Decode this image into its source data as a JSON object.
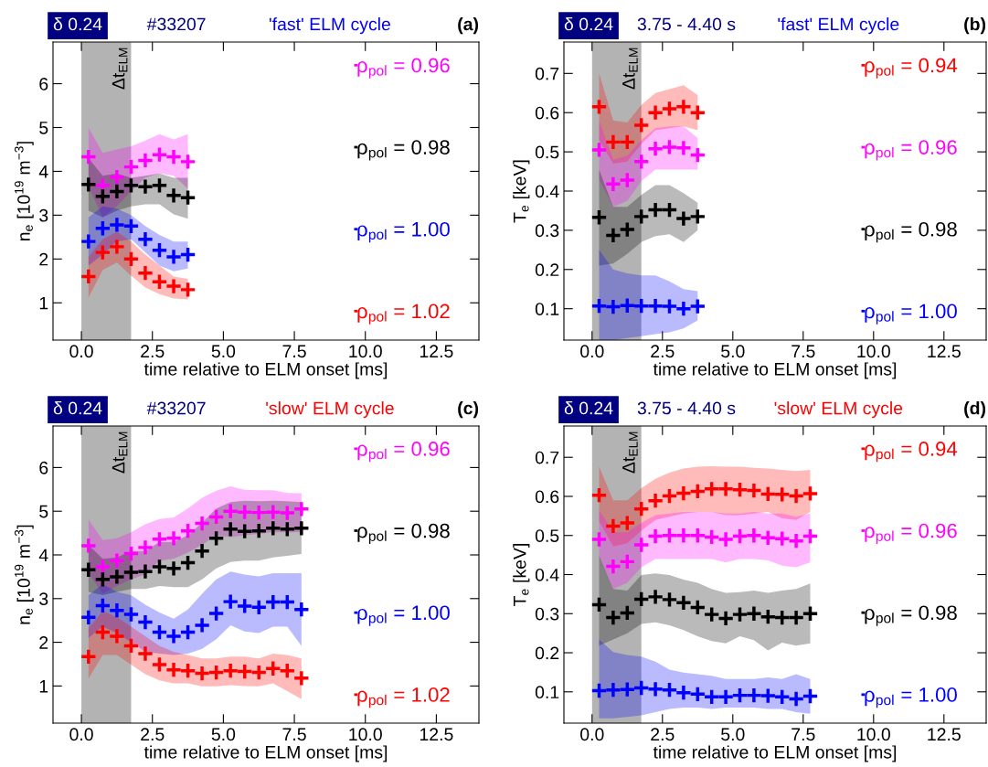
{
  "chart_data": [
    {
      "type": "scatter",
      "title": "'fast' ELM cycle",
      "subtitle": "#33207",
      "annotations": [
        "δ 0.24",
        "(a)"
      ],
      "xlabel": "time relative to ELM onset [ms]",
      "ylabel": "n$_{e}$ [10$^{19}$ m$^{−3}$]",
      "xlim": [
        -1,
        14
      ],
      "xticks": [
        {
          "value": 0,
          "label": "0.0"
        },
        {
          "value": 2.5,
          "label": "2.5"
        },
        {
          "value": 5,
          "label": "5.0"
        },
        {
          "value": 7.5,
          "label": "7.5"
        },
        {
          "value": 10,
          "label": "10.0"
        },
        {
          "value": 12.5,
          "label": "12.5"
        }
      ],
      "ylim": [
        0.15,
        6.95
      ],
      "yticks": [
        1,
        2,
        3,
        4,
        5,
        6
      ],
      "marker": "cross",
      "legend": "right",
      "bands": [
        {
          "axis": "x",
          "from": 0,
          "to": 1.75,
          "label": "Δt$_{ELM}$",
          "color": "#b3b3b3"
        }
      ],
      "x": [
        0.25,
        0.75,
        1.25,
        1.75,
        2.25,
        2.75,
        3.25,
        3.75
      ],
      "series": [
        {
          "name": "ρ$_{pol}$ = 0.96",
          "color": "#ff00ff",
          "values": [
            4.33,
            3.68,
            3.87,
            4.1,
            4.25,
            4.38,
            4.33,
            4.22
          ],
          "lower": [
            3.65,
            2.95,
            3.2,
            3.55,
            3.85,
            3.95,
            3.9,
            3.6
          ],
          "upper": [
            5.0,
            4.42,
            4.5,
            4.57,
            4.7,
            4.85,
            4.73,
            4.85
          ]
        },
        {
          "name": "ρ$_{pol}$ = 0.98",
          "color": "#000000",
          "values": [
            3.7,
            3.43,
            3.54,
            3.68,
            3.65,
            3.68,
            3.45,
            3.4
          ],
          "lower": [
            3.1,
            2.95,
            3.1,
            3.2,
            3.25,
            3.25,
            3.02,
            2.92
          ],
          "upper": [
            4.3,
            3.9,
            3.95,
            3.85,
            3.9,
            3.95,
            3.85,
            3.85
          ]
        },
        {
          "name": "ρ$_{pol}$ = 1.00",
          "color": "#0000ff",
          "values": [
            2.4,
            2.7,
            2.78,
            2.75,
            2.45,
            2.2,
            2.05,
            2.1
          ],
          "lower": [
            1.85,
            2.1,
            2.4,
            2.45,
            2.15,
            1.85,
            1.72,
            1.78
          ],
          "upper": [
            2.95,
            3.2,
            3.15,
            3.0,
            2.75,
            2.55,
            2.4,
            2.4
          ]
        },
        {
          "name": "ρ$_{pol}$ = 1.02",
          "color": "#ff0000",
          "values": [
            1.6,
            2.15,
            2.28,
            2.0,
            1.68,
            1.48,
            1.38,
            1.3
          ],
          "lower": [
            1.12,
            1.75,
            1.92,
            1.62,
            1.35,
            1.2,
            1.1,
            1.08
          ],
          "upper": [
            2.05,
            2.45,
            2.62,
            2.4,
            2.1,
            1.85,
            1.6,
            1.55
          ]
        }
      ]
    },
    {
      "type": "scatter",
      "title": "'fast' ELM cycle",
      "subtitle": "3.75 - 4.40 s",
      "annotations": [
        "δ 0.24",
        "(b)"
      ],
      "xlabel": "time relative to ELM onset [ms]",
      "ylabel": "T$_{e}$ [keV]",
      "xlim": [
        -1,
        14
      ],
      "xticks": [
        {
          "value": 0,
          "label": "0.0"
        },
        {
          "value": 2.5,
          "label": "2.5"
        },
        {
          "value": 5,
          "label": "5.0"
        },
        {
          "value": 7.5,
          "label": "7.5"
        },
        {
          "value": 10,
          "label": "10.0"
        },
        {
          "value": 12.5,
          "label": "12.5"
        }
      ],
      "ylim": [
        0.02,
        0.78
      ],
      "yticks": [
        0.1,
        0.2,
        0.3,
        0.4,
        0.5,
        0.6,
        0.7
      ],
      "marker": "cross",
      "legend": "right",
      "bands": [
        {
          "axis": "x",
          "from": 0,
          "to": 1.75,
          "label": "Δt$_{ELM}$",
          "color": "#b3b3b3"
        }
      ],
      "x": [
        0.25,
        0.75,
        1.25,
        1.75,
        2.25,
        2.75,
        3.25,
        3.75
      ],
      "series": [
        {
          "name": "ρ$_{pol}$ = 0.94",
          "color": "#ff0000",
          "values": [
            0.615,
            0.525,
            0.525,
            0.568,
            0.6,
            0.61,
            0.615,
            0.6
          ],
          "lower": [
            0.53,
            0.47,
            0.475,
            0.52,
            0.555,
            0.56,
            0.565,
            0.555
          ],
          "upper": [
            0.7,
            0.58,
            0.575,
            0.62,
            0.65,
            0.66,
            0.67,
            0.645
          ]
        },
        {
          "name": "ρ$_{pol}$ = 0.96",
          "color": "#ff00ff",
          "values": [
            0.505,
            0.418,
            0.428,
            0.475,
            0.508,
            0.512,
            0.51,
            0.492
          ],
          "lower": [
            0.43,
            0.36,
            0.375,
            0.425,
            0.455,
            0.455,
            0.455,
            0.455
          ],
          "upper": [
            0.58,
            0.48,
            0.49,
            0.53,
            0.56,
            0.565,
            0.565,
            0.535
          ]
        },
        {
          "name": "ρ$_{pol}$ = 0.98",
          "color": "#000000",
          "values": [
            0.333,
            0.287,
            0.302,
            0.335,
            0.352,
            0.352,
            0.33,
            0.335
          ],
          "lower": [
            0.21,
            0.215,
            0.24,
            0.27,
            0.285,
            0.29,
            0.27,
            0.3
          ],
          "upper": [
            0.455,
            0.36,
            0.36,
            0.39,
            0.415,
            0.415,
            0.395,
            0.37
          ]
        },
        {
          "name": "ρ$_{pol}$ = 1.00",
          "color": "#0000ff",
          "values": [
            0.107,
            0.105,
            0.108,
            0.107,
            0.107,
            0.106,
            0.1,
            0.106
          ],
          "lower": [
            0.02,
            0.02,
            0.025,
            0.03,
            0.035,
            0.04,
            0.05,
            0.07
          ],
          "upper": [
            0.25,
            0.2,
            0.19,
            0.185,
            0.185,
            0.17,
            0.15,
            0.145
          ]
        }
      ]
    },
    {
      "type": "scatter",
      "title": "'slow' ELM cycle",
      "subtitle": "#33207",
      "annotations": [
        "δ 0.24",
        "(c)"
      ],
      "xlabel": "time relative to ELM onset [ms]",
      "ylabel": "n$_{e}$ [10$^{19}$ m$^{−3}$]",
      "xlim": [
        -1,
        14
      ],
      "xticks": [
        {
          "value": 0,
          "label": "0.0"
        },
        {
          "value": 2.5,
          "label": "2.5"
        },
        {
          "value": 5,
          "label": "5.0"
        },
        {
          "value": 7.5,
          "label": "7.5"
        },
        {
          "value": 10,
          "label": "10.0"
        },
        {
          "value": 12.5,
          "label": "12.5"
        }
      ],
      "ylim": [
        0.15,
        6.95
      ],
      "yticks": [
        1,
        2,
        3,
        4,
        5,
        6
      ],
      "marker": "cross",
      "legend": "right",
      "bands": [
        {
          "axis": "x",
          "from": 0,
          "to": 1.75,
          "label": "Δt$_{ELM}$",
          "color": "#b3b3b3"
        }
      ],
      "x": [
        0.25,
        0.75,
        1.25,
        1.75,
        2.25,
        2.75,
        3.25,
        3.75,
        4.25,
        4.75,
        5.25,
        5.75,
        6.25,
        6.75,
        7.25,
        7.75
      ],
      "series": [
        {
          "name": "ρ$_{pol}$ = 0.96",
          "color": "#ff00ff",
          "values": [
            4.21,
            3.73,
            3.87,
            4.03,
            4.17,
            4.36,
            4.38,
            4.55,
            4.72,
            4.87,
            5.0,
            4.98,
            4.97,
            4.98,
            4.96,
            5.05
          ],
          "lower": [
            3.58,
            3.11,
            3.29,
            3.44,
            3.55,
            3.87,
            3.91,
            4.05,
            4.23,
            4.45,
            4.41,
            4.45,
            4.48,
            4.52,
            4.52,
            4.52
          ],
          "upper": [
            4.81,
            4.34,
            4.38,
            4.52,
            4.7,
            4.82,
            4.86,
            5.06,
            5.31,
            5.47,
            5.57,
            5.49,
            5.48,
            5.48,
            5.42,
            5.41
          ]
        },
        {
          "name": "ρ$_{pol}$ = 0.98",
          "color": "#000000",
          "values": [
            3.66,
            3.44,
            3.5,
            3.6,
            3.62,
            3.73,
            3.69,
            3.82,
            4.09,
            4.38,
            4.59,
            4.54,
            4.55,
            4.61,
            4.59,
            4.61
          ],
          "lower": [
            3.15,
            3.08,
            3.15,
            3.22,
            3.22,
            3.29,
            3.26,
            3.26,
            3.44,
            3.69,
            3.84,
            3.87,
            3.87,
            3.94,
            3.98,
            4.02
          ],
          "upper": [
            4.23,
            3.91,
            3.94,
            4.09,
            4.09,
            4.3,
            4.3,
            4.45,
            4.74,
            5.06,
            5.21,
            5.24,
            5.23,
            5.24,
            5.23,
            5.21
          ]
        },
        {
          "name": "ρ$_{pol}$ = 1.00",
          "color": "#0000ff",
          "values": [
            2.57,
            2.84,
            2.73,
            2.64,
            2.46,
            2.23,
            2.14,
            2.23,
            2.39,
            2.66,
            2.93,
            2.83,
            2.8,
            2.92,
            2.92,
            2.75
          ],
          "lower": [
            2.1,
            2.36,
            2.21,
            2.0,
            1.78,
            1.74,
            1.71,
            1.74,
            1.85,
            2.07,
            2.39,
            2.25,
            2.21,
            2.36,
            2.36,
            1.92
          ],
          "upper": [
            3.08,
            3.33,
            3.15,
            3.08,
            2.86,
            2.68,
            2.54,
            2.75,
            3.11,
            3.44,
            3.62,
            3.55,
            3.51,
            3.58,
            3.58,
            3.58
          ]
        },
        {
          "name": "ρ$_{pol}$ = 1.02",
          "color": "#ff0000",
          "values": [
            1.67,
            2.23,
            2.14,
            1.92,
            1.74,
            1.49,
            1.37,
            1.35,
            1.29,
            1.31,
            1.35,
            1.33,
            1.31,
            1.4,
            1.35,
            1.18
          ],
          "lower": [
            1.17,
            1.71,
            1.71,
            1.49,
            1.27,
            1.13,
            1.06,
            1.06,
            0.99,
            0.99,
            1.02,
            1.0,
            0.99,
            1.06,
            0.88,
            0.7
          ],
          "upper": [
            2.32,
            2.72,
            2.57,
            2.36,
            2.14,
            1.92,
            1.78,
            1.71,
            1.63,
            1.63,
            1.67,
            1.67,
            1.63,
            1.74,
            1.71,
            1.63
          ]
        }
      ]
    },
    {
      "type": "scatter",
      "title": "'slow' ELM cycle",
      "subtitle": "3.75 - 4.40 s",
      "annotations": [
        "δ 0.24",
        "(d)"
      ],
      "xlabel": "time relative to ELM onset [ms]",
      "ylabel": "T$_{e}$ [keV]",
      "xlim": [
        -1,
        14
      ],
      "xticks": [
        {
          "value": 0,
          "label": "0.0"
        },
        {
          "value": 2.5,
          "label": "2.5"
        },
        {
          "value": 5,
          "label": "5.0"
        },
        {
          "value": 7.5,
          "label": "7.5"
        },
        {
          "value": 10,
          "label": "10.0"
        },
        {
          "value": 12.5,
          "label": "12.5"
        }
      ],
      "ylim": [
        0.02,
        0.78
      ],
      "yticks": [
        0.1,
        0.2,
        0.3,
        0.4,
        0.5,
        0.6,
        0.7
      ],
      "marker": "cross",
      "legend": "right",
      "bands": [
        {
          "axis": "x",
          "from": 0,
          "to": 1.75,
          "label": "Δt$_{ELM}$",
          "color": "#b3b3b3"
        }
      ],
      "x": [
        0.25,
        0.75,
        1.25,
        1.75,
        2.25,
        2.75,
        3.25,
        3.75,
        4.25,
        4.75,
        5.25,
        5.75,
        6.25,
        6.75,
        7.25,
        7.75
      ],
      "series": [
        {
          "name": "ρ$_{pol}$ = 0.94",
          "color": "#ff0000",
          "values": [
            0.603,
            0.524,
            0.532,
            0.568,
            0.589,
            0.601,
            0.608,
            0.613,
            0.619,
            0.619,
            0.617,
            0.615,
            0.606,
            0.605,
            0.601,
            0.607
          ],
          "lower": [
            0.536,
            0.472,
            0.48,
            0.512,
            0.54,
            0.548,
            0.556,
            0.56,
            0.56,
            0.552,
            0.552,
            0.556,
            0.56,
            0.544,
            0.54,
            0.56
          ],
          "upper": [
            0.676,
            0.59,
            0.59,
            0.621,
            0.645,
            0.661,
            0.671,
            0.676,
            0.677,
            0.676,
            0.676,
            0.673,
            0.671,
            0.668,
            0.665,
            0.668
          ]
        },
        {
          "name": "ρ$_{pol}$ = 0.96",
          "color": "#ff00ff",
          "values": [
            0.49,
            0.421,
            0.433,
            0.476,
            0.498,
            0.5,
            0.5,
            0.5,
            0.496,
            0.49,
            0.498,
            0.5,
            0.494,
            0.492,
            0.486,
            0.498
          ],
          "lower": [
            0.444,
            0.363,
            0.379,
            0.419,
            0.44,
            0.44,
            0.44,
            0.44,
            0.44,
            0.431,
            0.44,
            0.44,
            0.436,
            0.423,
            0.419,
            0.431
          ],
          "upper": [
            0.565,
            0.508,
            0.508,
            0.532,
            0.552,
            0.556,
            0.56,
            0.56,
            0.56,
            0.556,
            0.556,
            0.56,
            0.556,
            0.556,
            0.548,
            0.556
          ]
        },
        {
          "name": "ρ$_{pol}$ = 0.98",
          "color": "#000000",
          "values": [
            0.323,
            0.29,
            0.302,
            0.337,
            0.343,
            0.336,
            0.328,
            0.316,
            0.298,
            0.288,
            0.298,
            0.3,
            0.292,
            0.29,
            0.29,
            0.3
          ],
          "lower": [
            0.218,
            0.234,
            0.25,
            0.274,
            0.278,
            0.27,
            0.258,
            0.242,
            0.23,
            0.224,
            0.242,
            0.232,
            0.206,
            0.226,
            0.218,
            0.224
          ],
          "upper": [
            0.448,
            0.363,
            0.359,
            0.399,
            0.403,
            0.399,
            0.387,
            0.379,
            0.363,
            0.353,
            0.355,
            0.359,
            0.353,
            0.359,
            0.363,
            0.377
          ]
        },
        {
          "name": "ρ$_{pol}$ = 1.00",
          "color": "#0000ff",
          "values": [
            0.103,
            0.105,
            0.106,
            0.11,
            0.107,
            0.105,
            0.098,
            0.094,
            0.087,
            0.087,
            0.091,
            0.091,
            0.09,
            0.087,
            0.082,
            0.089
          ],
          "lower": [
            0.032,
            0.032,
            0.036,
            0.04,
            0.048,
            0.056,
            0.06,
            0.06,
            0.056,
            0.06,
            0.06,
            0.06,
            0.056,
            0.056,
            0.048,
            0.044
          ],
          "upper": [
            0.234,
            0.202,
            0.194,
            0.19,
            0.177,
            0.157,
            0.149,
            0.145,
            0.141,
            0.133,
            0.133,
            0.133,
            0.137,
            0.133,
            0.145,
            0.133
          ]
        }
      ]
    }
  ]
}
